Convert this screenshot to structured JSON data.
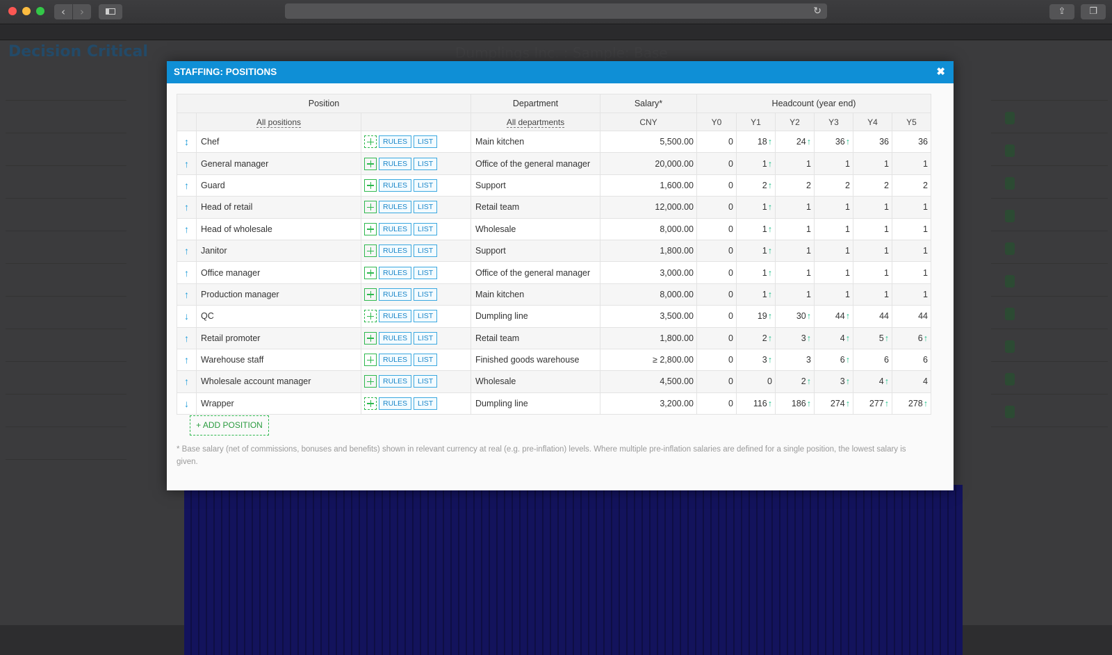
{
  "browser": {
    "nav_back_icon": "chevron-left-icon",
    "nav_forward_icon": "chevron-right-icon",
    "reload_icon": "reload-icon",
    "share_icon": "share-icon",
    "tabs_icon": "tabs-icon"
  },
  "background": {
    "logo": "Decision Critical",
    "title": "Dumplings Inc. : Sample: Base"
  },
  "modal": {
    "title": "STAFFING: POSITIONS",
    "close_glyph": "✖",
    "header": {
      "position": "Position",
      "department": "Department",
      "salary": "Salary*",
      "headcount": "Headcount (year end)",
      "all_positions": "All positions",
      "all_departments": "All departments",
      "currency": "CNY",
      "years": [
        "Y0",
        "Y1",
        "Y2",
        "Y3",
        "Y4",
        "Y5"
      ]
    },
    "rules_label": "RULES",
    "list_label": "LIST",
    "rows": [
      {
        "dir": "↕",
        "name": "Chef",
        "dashed": true,
        "dept": "Main kitchen",
        "salary": "5,500.00",
        "hc": [
          "0",
          "18",
          "24",
          "36",
          "36",
          "36"
        ],
        "up": [
          false,
          true,
          true,
          true,
          false,
          false
        ]
      },
      {
        "dir": "↑",
        "name": "General manager",
        "dashed": false,
        "dept": "Office of the general manager",
        "salary": "20,000.00",
        "hc": [
          "0",
          "1",
          "1",
          "1",
          "1",
          "1"
        ],
        "up": [
          false,
          true,
          false,
          false,
          false,
          false
        ]
      },
      {
        "dir": "↑",
        "name": "Guard",
        "dashed": false,
        "dept": "Support",
        "salary": "1,600.00",
        "hc": [
          "0",
          "2",
          "2",
          "2",
          "2",
          "2"
        ],
        "up": [
          false,
          true,
          false,
          false,
          false,
          false
        ]
      },
      {
        "dir": "↑",
        "name": "Head of retail",
        "dashed": false,
        "dept": "Retail team",
        "salary": "12,000.00",
        "hc": [
          "0",
          "1",
          "1",
          "1",
          "1",
          "1"
        ],
        "up": [
          false,
          true,
          false,
          false,
          false,
          false
        ]
      },
      {
        "dir": "↑",
        "name": "Head of wholesale",
        "dashed": false,
        "dept": "Wholesale",
        "salary": "8,000.00",
        "hc": [
          "0",
          "1",
          "1",
          "1",
          "1",
          "1"
        ],
        "up": [
          false,
          true,
          false,
          false,
          false,
          false
        ]
      },
      {
        "dir": "↑",
        "name": "Janitor",
        "dashed": false,
        "dept": "Support",
        "salary": "1,800.00",
        "hc": [
          "0",
          "1",
          "1",
          "1",
          "1",
          "1"
        ],
        "up": [
          false,
          true,
          false,
          false,
          false,
          false
        ]
      },
      {
        "dir": "↑",
        "name": "Office manager",
        "dashed": false,
        "dept": "Office of the general manager",
        "salary": "3,000.00",
        "hc": [
          "0",
          "1",
          "1",
          "1",
          "1",
          "1"
        ],
        "up": [
          false,
          true,
          false,
          false,
          false,
          false
        ]
      },
      {
        "dir": "↑",
        "name": "Production manager",
        "dashed": false,
        "dept": "Main kitchen",
        "salary": "8,000.00",
        "hc": [
          "0",
          "1",
          "1",
          "1",
          "1",
          "1"
        ],
        "up": [
          false,
          true,
          false,
          false,
          false,
          false
        ]
      },
      {
        "dir": "↓",
        "name": "QC",
        "dashed": true,
        "dept": "Dumpling line",
        "salary": "3,500.00",
        "hc": [
          "0",
          "19",
          "30",
          "44",
          "44",
          "44"
        ],
        "up": [
          false,
          true,
          true,
          true,
          false,
          false
        ]
      },
      {
        "dir": "↑",
        "name": "Retail promoter",
        "dashed": false,
        "dept": "Retail team",
        "salary": "1,800.00",
        "hc": [
          "0",
          "2",
          "3",
          "4",
          "5",
          "6"
        ],
        "up": [
          false,
          true,
          true,
          true,
          true,
          true
        ]
      },
      {
        "dir": "↑",
        "name": "Warehouse staff",
        "dashed": false,
        "dept": "Finished goods warehouse",
        "salary": "≥ 2,800.00",
        "hc": [
          "0",
          "3",
          "3",
          "6",
          "6",
          "6"
        ],
        "up": [
          false,
          true,
          false,
          true,
          false,
          false
        ]
      },
      {
        "dir": "↑",
        "name": "Wholesale account manager",
        "dashed": false,
        "dept": "Wholesale",
        "salary": "4,500.00",
        "hc": [
          "0",
          "0",
          "2",
          "3",
          "4",
          "4"
        ],
        "up": [
          false,
          false,
          true,
          true,
          true,
          false
        ]
      },
      {
        "dir": "↓",
        "name": "Wrapper",
        "dashed": true,
        "dept": "Dumpling line",
        "salary": "3,200.00",
        "hc": [
          "0",
          "116",
          "186",
          "274",
          "277",
          "278"
        ],
        "up": [
          false,
          true,
          true,
          true,
          true,
          true
        ]
      }
    ],
    "add_position_label": "ADD POSITION",
    "footnote": "* Base salary (net of commissions, bonuses and benefits) shown in relevant currency at real (e.g. pre-inflation) levels. Where multiple pre-inflation salaries are defined for a single position, the lowest salary is given."
  },
  "colors": {
    "header_blue": "#0f8fd6",
    "increase_arrow": "#1dbf8a",
    "add_green": "#2db84e",
    "button_blue": "#1a86c8"
  }
}
